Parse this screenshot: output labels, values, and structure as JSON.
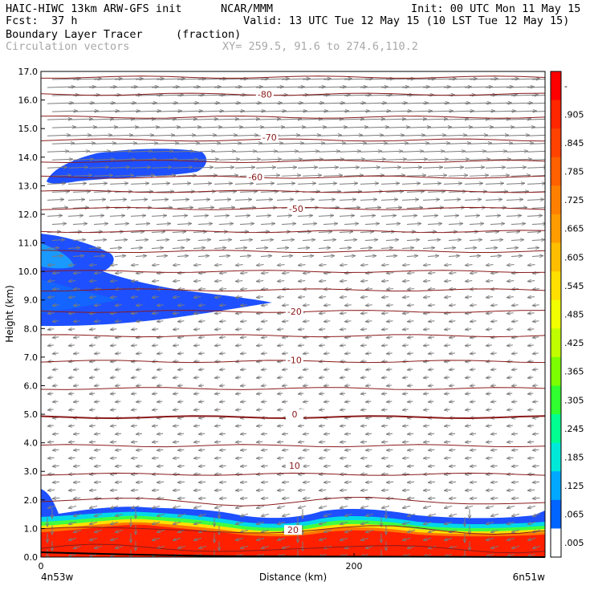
{
  "header": {
    "title": "HAIC-HIWC 13km ARW-GFS init",
    "org": "NCAR/MMM",
    "init": "Init: 00 UTC Mon 11 May 15",
    "fcst_label": "Fcst:",
    "fcst_value": "37 h",
    "valid": "Valid: 13 UTC Tue 12 May 15 (10 LST Tue 12 May 15)",
    "field": "Boundary Layer Tracer",
    "field_units": "(fraction)",
    "overlay": "Circulation vectors",
    "xy": "XY= 259.5, 91.6 to 274.6,110.2"
  },
  "chart_data": {
    "type": "heatmap",
    "title": "Boundary Layer Tracer",
    "xlabel": "Distance (km)",
    "ylabel": "Height (km)",
    "xlim": [
      0,
      322
    ],
    "ylim": [
      0,
      17
    ],
    "x_ticks": [
      {
        "value": 0,
        "label": "0"
      },
      {
        "value": 200,
        "label": "200"
      }
    ],
    "x_end_labels": {
      "left": "4n53w",
      "right": "6n51w"
    },
    "y_ticks": [
      "0.0",
      "1.0",
      "2.0",
      "3.0",
      "4.0",
      "5.0",
      "6.0",
      "7.0",
      "8.0",
      "9.0",
      "10.0",
      "11.0",
      "12.0",
      "13.0",
      "14.0",
      "15.0",
      "16.0",
      "17.0"
    ],
    "colorbar": {
      "labels": [
        "-",
        ".905",
        ".845",
        ".785",
        ".725",
        ".665",
        ".605",
        ".545",
        ".485",
        ".425",
        ".365",
        ".305",
        ".245",
        ".185",
        ".125",
        ".065",
        ".005"
      ],
      "colors": [
        "#ff0000",
        "#ff2600",
        "#ff4200",
        "#ff6000",
        "#ff8000",
        "#ff9c00",
        "#ffbe00",
        "#ffe000",
        "#f2ff00",
        "#c0ff00",
        "#7cff00",
        "#30ff30",
        "#00ff90",
        "#00e8d8",
        "#00a8ff",
        "#0064ff",
        "#ffffff"
      ]
    },
    "contour_line_color": "#8b1a1a",
    "contour_labels": [
      {
        "value": "-80",
        "x": 143,
        "y": 16.2
      },
      {
        "value": "-70",
        "x": 146,
        "y": 14.7
      },
      {
        "value": "-60",
        "x": 137,
        "y": 13.3
      },
      {
        "value": "-50",
        "x": 163,
        "y": 12.2
      },
      {
        "value": "-20",
        "x": 162,
        "y": 8.6
      },
      {
        "value": "-10",
        "x": 162,
        "y": 6.9
      },
      {
        "value": "0",
        "x": 162,
        "y": 5.0
      },
      {
        "value": "10",
        "x": 162,
        "y": 3.2
      },
      {
        "value": "20",
        "x": 161,
        "y": 0.95
      }
    ],
    "tracer_regions": [
      {
        "name": "upper blob",
        "level": 0.065,
        "x_range": [
          3,
          104
        ],
        "y_range": [
          13.1,
          14.3
        ]
      },
      {
        "name": "mid plume",
        "level": 0.065,
        "x_range": [
          0,
          148
        ],
        "y_range": [
          8.2,
          11.3
        ]
      },
      {
        "name": "boundary layer",
        "level": 0.905,
        "x_range": [
          0,
          322
        ],
        "y_range": [
          0.0,
          1.6
        ]
      }
    ],
    "vector_layers": [
      {
        "y_range": [
          10.5,
          17
        ],
        "direction": "east"
      },
      {
        "y_range": [
          0,
          10.5
        ],
        "direction": "west"
      }
    ]
  }
}
